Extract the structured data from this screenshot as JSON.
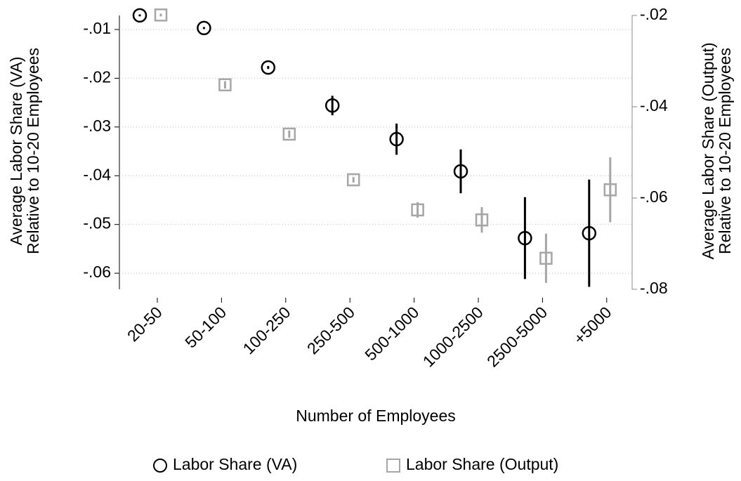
{
  "chart_data": {
    "type": "errorbar",
    "x_label": "Number of Employees",
    "y_label": [
      "Average Labor Share (VA)",
      "Relative to 10-20 Employees"
    ],
    "y2_label": [
      "Average Labor Share (Output)",
      "Relative to 10-20 Employees"
    ],
    "categories": [
      "20-50",
      "50-100",
      "100-250",
      "250-500",
      "500-1000",
      "1000-2500",
      "2500-5000",
      "+5000"
    ],
    "series": [
      {
        "name": "Labor Share (VA)",
        "color": "#000000",
        "marker": "circle",
        "axis": "y",
        "values": [
          -0.0071,
          -0.0097,
          -0.0178,
          -0.0256,
          -0.0325,
          -0.0391,
          -0.0528,
          -0.0518
        ],
        "errors": [
          0.0002,
          0.0002,
          0.0003,
          0.002,
          0.0032,
          0.0045,
          0.0084,
          0.011
        ]
      },
      {
        "name": "Labor Share (Output)",
        "color": "#a6a6a6",
        "marker": "square",
        "axis": "y2",
        "values": [
          -0.0199,
          -0.0352,
          -0.046,
          -0.056,
          -0.0626,
          -0.0648,
          -0.0732,
          -0.0582
        ],
        "errors": [
          0.0003,
          0.0008,
          0.0008,
          0.0006,
          0.0017,
          0.0028,
          0.0054,
          0.0071
        ]
      }
    ],
    "ylim": [
      -0.0633,
      -0.00712
    ],
    "yticks": [
      {
        "value": -0.01,
        "label": "-.01"
      },
      {
        "value": -0.02,
        "label": "-.02"
      },
      {
        "value": -0.03,
        "label": "-.03"
      },
      {
        "value": -0.04,
        "label": "-.04"
      },
      {
        "value": -0.05,
        "label": "-.05"
      },
      {
        "value": -0.06,
        "label": "-.06"
      }
    ],
    "y2lim": [
      -0.08,
      -0.02
    ],
    "y2ticks": [
      {
        "value": -0.02,
        "label": "-.02"
      },
      {
        "value": -0.04,
        "label": "-.04"
      },
      {
        "value": -0.06,
        "label": "-.06"
      },
      {
        "value": -0.08,
        "label": "-.08"
      }
    ],
    "grid": true
  }
}
